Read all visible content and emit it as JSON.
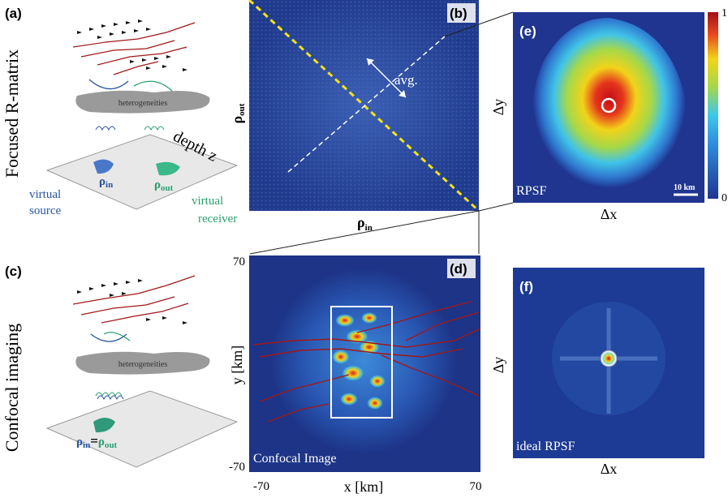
{
  "panels": {
    "a": {
      "label": "(a)",
      "side_title": "Focused R-matrix",
      "depth": "depth z",
      "medium": "heterogeneities",
      "rho_in": {
        "symbol": "ρ",
        "subscript": "in"
      },
      "rho_out": {
        "symbol": "ρ",
        "subscript": "out"
      },
      "source": [
        "virtual",
        "source"
      ],
      "receiver": [
        "virtual",
        "receiver"
      ]
    },
    "b": {
      "label": "(b)",
      "avg": "avg.",
      "y_axis": {
        "symbol": "ρ",
        "subscript": "out"
      },
      "x_axis": {
        "symbol": "ρ",
        "subscript": "in"
      }
    },
    "e": {
      "label": "(e)",
      "y_axis": "Δy",
      "x_axis": "Δx",
      "caption": "RPSF",
      "scale_bar": "10 km",
      "colorbar_max": 1,
      "colorbar_min": 0
    },
    "c": {
      "label": "(c)",
      "side_title": "Confocal imaging",
      "medium": "heterogeneities",
      "equality": {
        "left": {
          "symbol": "ρ",
          "subscript": "in"
        },
        "sign": "=",
        "right": {
          "symbol": "ρ",
          "subscript": "out"
        }
      }
    },
    "d": {
      "label": "(d)",
      "y_axis": "y [km]",
      "x_axis": "x [km]",
      "yticks": [
        70,
        -70
      ],
      "xticks": [
        -70,
        70
      ],
      "caption": "Confocal Image"
    },
    "f": {
      "label": "(f)",
      "y_axis": "Δy",
      "x_axis": "Δx",
      "caption": "ideal RPSF"
    }
  }
}
